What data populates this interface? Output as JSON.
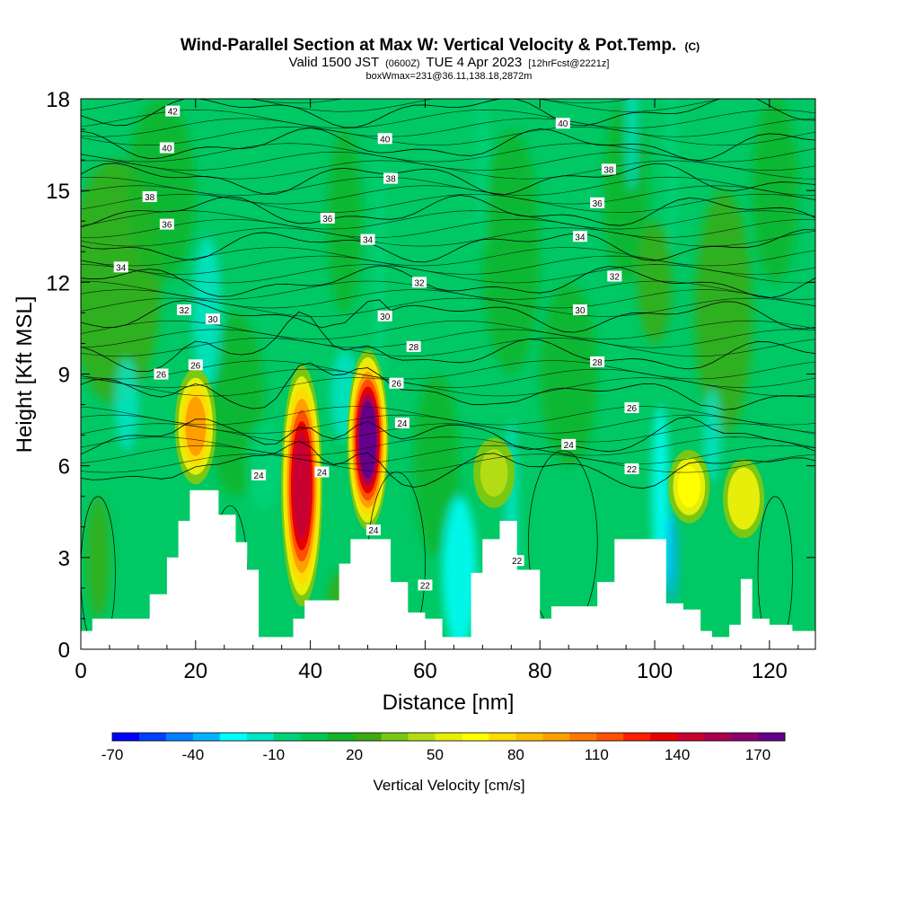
{
  "header": {
    "title_main": "Wind-Parallel Section at Max W: Vertical Velocity & Pot.Temp.",
    "title_copyright": "(C)",
    "valid_prefix": "Valid 1500 JST",
    "valid_z": "(0600Z)",
    "valid_date": "TUE 4 Apr 2023",
    "valid_fcst": "[12hrFcst@2221z]",
    "boxwmax": "boxWmax=231@36.11,138.18,2872m"
  },
  "chart_data": {
    "type": "heatmap",
    "xlabel": "Distance [nm]",
    "ylabel": "Height [Kft MSL]",
    "xlim": [
      0,
      128
    ],
    "ylim": [
      0,
      18
    ],
    "x_ticks": [
      0,
      20,
      40,
      60,
      80,
      100,
      120
    ],
    "y_ticks": [
      0,
      3,
      6,
      9,
      12,
      15,
      18
    ],
    "colorbar": {
      "label": "Vertical Velocity [cm/s]",
      "min": -70,
      "step": 10,
      "tick_labels": [
        "-70",
        "-40",
        "-10",
        "20",
        "50",
        "80",
        "110",
        "140",
        "170"
      ],
      "colors": [
        "#0000ff",
        "#0040ff",
        "#0080ff",
        "#00b4ff",
        "#00ffff",
        "#00e4c8",
        "#00d278",
        "#00c850",
        "#14b428",
        "#3caa14",
        "#78c814",
        "#b4dc14",
        "#e6ee0a",
        "#ffff00",
        "#ffdc00",
        "#ffbe00",
        "#ffa000",
        "#ff7800",
        "#ff5000",
        "#ff1e00",
        "#e60000",
        "#c80032",
        "#aa0050",
        "#8c006e",
        "#64008c"
      ]
    },
    "updraft_cores": [
      {
        "x": 20,
        "z_base": 5.2,
        "z_top": 9.0,
        "max_w": 90
      },
      {
        "x": 38.5,
        "z_base": 1.0,
        "z_top": 8.9,
        "max_w": 140
      },
      {
        "x": 50,
        "z_base": 3.6,
        "z_top": 9.5,
        "max_w": 170
      },
      {
        "x": 72,
        "z_base": 4.5,
        "z_top": 6.8,
        "max_w": 45
      },
      {
        "x": 106,
        "z_base": 4.0,
        "z_top": 6.4,
        "max_w": 60
      },
      {
        "x": 115.5,
        "z_base": 3.5,
        "z_top": 6.1,
        "max_w": 55
      }
    ],
    "terrain": {
      "x": [
        0,
        2,
        7,
        12,
        15,
        17,
        19,
        22,
        24,
        27,
        29,
        31,
        34,
        37,
        39,
        43,
        45,
        47,
        50,
        54,
        57,
        60,
        63,
        66,
        68,
        70,
        73,
        76,
        80,
        82,
        86,
        90,
        93,
        96,
        99,
        102,
        105,
        108,
        110,
        113,
        115,
        117,
        120,
        124,
        128
      ],
      "height": [
        0.6,
        1.0,
        1.0,
        1.8,
        3.0,
        4.2,
        5.2,
        5.2,
        4.4,
        3.5,
        2.6,
        0.4,
        0.4,
        1.0,
        1.6,
        1.6,
        2.8,
        3.6,
        3.6,
        2.2,
        1.2,
        1.0,
        0.4,
        0.4,
        2.5,
        3.6,
        4.2,
        2.6,
        1.0,
        1.4,
        1.4,
        2.2,
        3.6,
        3.6,
        3.6,
        1.5,
        1.3,
        0.6,
        0.4,
        0.8,
        2.3,
        1.0,
        0.8,
        0.6,
        0.6
      ]
    },
    "theta_contours": [
      {
        "theta": 22,
        "labels": [
          {
            "x": 60,
            "z": 2.1,
            "text": "22"
          },
          {
            "x": 76,
            "z": 2.9,
            "text": "22"
          },
          {
            "x": 96,
            "z": 5.9,
            "text": "22"
          }
        ]
      },
      {
        "theta": 24,
        "labels": [
          {
            "x": 31,
            "z": 5.7,
            "text": "24"
          },
          {
            "x": 42,
            "z": 5.8,
            "text": "24"
          },
          {
            "x": 51,
            "z": 3.9,
            "text": "24"
          },
          {
            "x": 56,
            "z": 7.4,
            "text": "24"
          },
          {
            "x": 85,
            "z": 6.7,
            "text": "24"
          }
        ]
      },
      {
        "theta": 26,
        "labels": [
          {
            "x": 14,
            "z": 9.0,
            "text": "26"
          },
          {
            "x": 20,
            "z": 9.3,
            "text": "26"
          },
          {
            "x": 55,
            "z": 8.7,
            "text": "26"
          },
          {
            "x": 96,
            "z": 7.9,
            "text": "26"
          }
        ]
      },
      {
        "theta": 28,
        "labels": [
          {
            "x": 58,
            "z": 9.9,
            "text": "28"
          },
          {
            "x": 90,
            "z": 9.4,
            "text": "28"
          }
        ]
      },
      {
        "theta": 30,
        "labels": [
          {
            "x": 23,
            "z": 10.8,
            "text": "30"
          },
          {
            "x": 53,
            "z": 10.9,
            "text": "30"
          },
          {
            "x": 87,
            "z": 11.1,
            "text": "30"
          }
        ]
      },
      {
        "theta": 32,
        "labels": [
          {
            "x": 18,
            "z": 11.1,
            "text": "32"
          },
          {
            "x": 59,
            "z": 12.0,
            "text": "32"
          },
          {
            "x": 93,
            "z": 12.2,
            "text": "32"
          }
        ]
      },
      {
        "theta": 34,
        "labels": [
          {
            "x": 7,
            "z": 12.5,
            "text": "34"
          },
          {
            "x": 50,
            "z": 13.4,
            "text": "34"
          },
          {
            "x": 87,
            "z": 13.5,
            "text": "34"
          }
        ]
      },
      {
        "theta": 36,
        "labels": [
          {
            "x": 15,
            "z": 13.9,
            "text": "36"
          },
          {
            "x": 43,
            "z": 14.1,
            "text": "36"
          },
          {
            "x": 90,
            "z": 14.6,
            "text": "36"
          }
        ]
      },
      {
        "theta": 38,
        "labels": [
          {
            "x": 12,
            "z": 14.8,
            "text": "38"
          },
          {
            "x": 54,
            "z": 15.4,
            "text": "38"
          },
          {
            "x": 92,
            "z": 15.7,
            "text": "38"
          }
        ]
      },
      {
        "theta": 40,
        "labels": [
          {
            "x": 15,
            "z": 16.4,
            "text": "40"
          },
          {
            "x": 53,
            "z": 16.7,
            "text": "40"
          },
          {
            "x": 84,
            "z": 17.2,
            "text": "40"
          }
        ]
      },
      {
        "theta": 42,
        "labels": [
          {
            "x": 16,
            "z": 17.6,
            "text": "42"
          }
        ]
      }
    ]
  }
}
